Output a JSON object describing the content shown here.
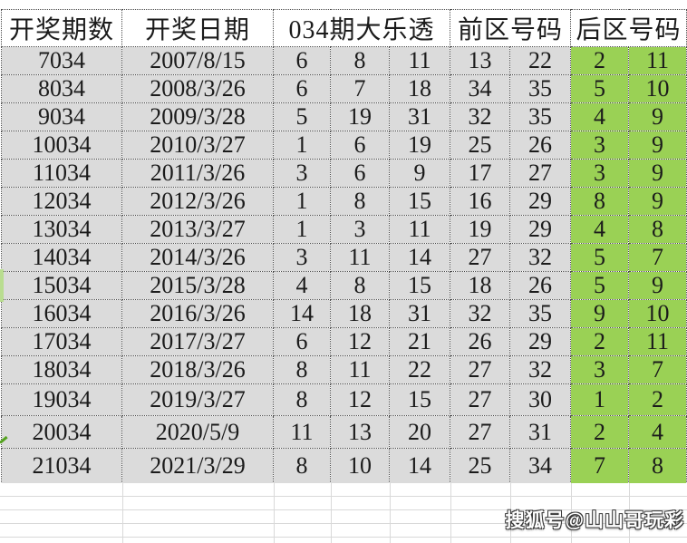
{
  "header": {
    "col_period": "开奖期数",
    "col_date": "开奖日期",
    "col_lotto": "034期大乐透",
    "col_front": "前区号码",
    "col_back": "后区号码"
  },
  "rows": [
    {
      "period": "7034",
      "date": "2007/8/15",
      "front": [
        "6",
        "8",
        "11",
        "13",
        "22"
      ],
      "back": [
        "2",
        "11"
      ]
    },
    {
      "period": "8034",
      "date": "2008/3/26",
      "front": [
        "6",
        "7",
        "18",
        "34",
        "35"
      ],
      "back": [
        "5",
        "10"
      ]
    },
    {
      "period": "9034",
      "date": "2009/3/28",
      "front": [
        "5",
        "19",
        "31",
        "32",
        "35"
      ],
      "back": [
        "4",
        "9"
      ]
    },
    {
      "period": "10034",
      "date": "2010/3/27",
      "front": [
        "1",
        "6",
        "19",
        "25",
        "26"
      ],
      "back": [
        "3",
        "9"
      ]
    },
    {
      "period": "11034",
      "date": "2011/3/26",
      "front": [
        "3",
        "6",
        "9",
        "17",
        "27"
      ],
      "back": [
        "3",
        "9"
      ]
    },
    {
      "period": "12034",
      "date": "2012/3/26",
      "front": [
        "1",
        "8",
        "15",
        "16",
        "29"
      ],
      "back": [
        "8",
        "9"
      ]
    },
    {
      "period": "13034",
      "date": "2013/3/27",
      "front": [
        "1",
        "3",
        "11",
        "19",
        "29"
      ],
      "back": [
        "4",
        "8"
      ]
    },
    {
      "period": "14034",
      "date": "2014/3/26",
      "front": [
        "3",
        "11",
        "14",
        "27",
        "32"
      ],
      "back": [
        "5",
        "7"
      ]
    },
    {
      "period": "15034",
      "date": "2015/3/28",
      "front": [
        "4",
        "8",
        "15",
        "18",
        "26"
      ],
      "back": [
        "5",
        "9"
      ]
    },
    {
      "period": "16034",
      "date": "2016/3/26",
      "front": [
        "14",
        "18",
        "31",
        "32",
        "35"
      ],
      "back": [
        "9",
        "10"
      ]
    },
    {
      "period": "17034",
      "date": "2017/3/27",
      "front": [
        "6",
        "12",
        "21",
        "26",
        "29"
      ],
      "back": [
        "2",
        "11"
      ]
    },
    {
      "period": "18034",
      "date": "2018/3/26",
      "front": [
        "8",
        "11",
        "22",
        "27",
        "32"
      ],
      "back": [
        "3",
        "7"
      ]
    },
    {
      "period": "19034",
      "date": "2019/3/27",
      "front": [
        "8",
        "12",
        "15",
        "27",
        "30"
      ],
      "back": [
        "1",
        "2"
      ]
    },
    {
      "period": "20034",
      "date": "2020/5/9",
      "front": [
        "11",
        "13",
        "20",
        "27",
        "31"
      ],
      "back": [
        "2",
        "4"
      ]
    },
    {
      "period": "21034",
      "date": "2021/3/29",
      "front": [
        "8",
        "10",
        "14",
        "25",
        "34"
      ],
      "back": [
        "7",
        "8"
      ]
    }
  ],
  "watermark": "搜狐号@山山哥玩彩",
  "colors": {
    "back_zone_green": "#9ad155",
    "cell_gray": "#dbdbdb",
    "header_bg": "#ffffff",
    "grid_line": "#4a4a4a",
    "faint_grid": "#d9d9d9",
    "accent_green_mark": "#54a21f"
  }
}
